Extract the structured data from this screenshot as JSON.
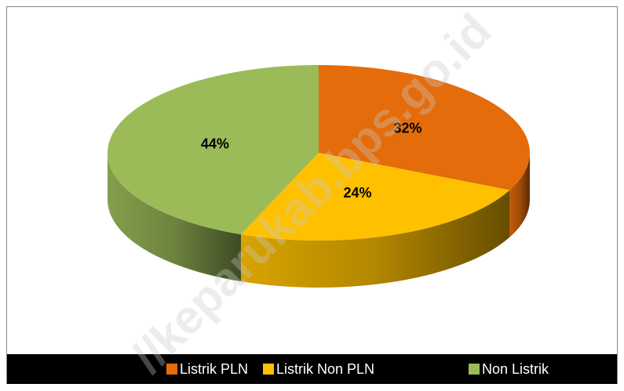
{
  "chart_data": {
    "type": "pie",
    "categories": [
      "Listrik PLN",
      "Listrik Non PLN",
      "Non Listrik"
    ],
    "values": [
      32,
      24,
      44
    ],
    "value_labels": [
      "32%",
      "24%",
      "44%"
    ],
    "colors": [
      "#e46c0a",
      "#ffc000",
      "#9bbb59"
    ],
    "legend": "bottom",
    "watermark": "//keparukab.bps.go.id"
  }
}
